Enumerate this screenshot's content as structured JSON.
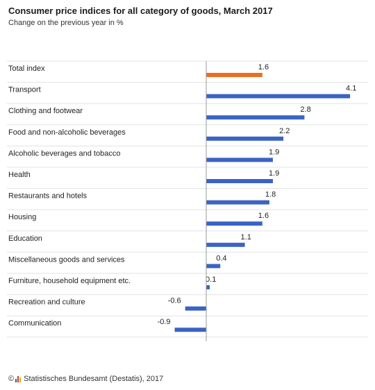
{
  "title": "Consumer price indices for all category of goods, March 2017",
  "subtitle": "Change on the previous year in %",
  "footer": {
    "copyright": "©",
    "source": "Statistisches Bundesamt (Destatis), 2017"
  },
  "colors": {
    "highlight": "#ed6d1f",
    "bar": "#3a63c4",
    "grid": "#e3e3e3",
    "axis": "#9a9a9a"
  },
  "chart_data": {
    "type": "bar",
    "orientation": "horizontal",
    "categories": [
      "Total index",
      "Transport",
      "Clothing and footwear",
      "Food and non-alcoholic beverages",
      "Alcoholic beverages and tobacco",
      "Health",
      "Restaurants and hotels",
      "Housing",
      "Education",
      "Miscellaneous goods and services",
      "Furniture, household equipment etc.",
      "Recreation and culture",
      "Communication"
    ],
    "values": [
      1.6,
      4.1,
      2.8,
      2.2,
      1.9,
      1.9,
      1.8,
      1.6,
      1.1,
      0.4,
      0.1,
      -0.6,
      -0.9
    ],
    "value_labels": [
      "1.6",
      "4.1",
      "2.8",
      "2.2",
      "1.9",
      "1.9",
      "1.8",
      "1.6",
      "1.1",
      "0.4",
      "0.1",
      "-0.6",
      "-0.9"
    ],
    "highlight_index": 0,
    "xlim": [
      -1.0,
      4.3
    ],
    "grid": true,
    "title": "Consumer price indices for all category of goods, March 2017",
    "xlabel": "",
    "ylabel": ""
  }
}
